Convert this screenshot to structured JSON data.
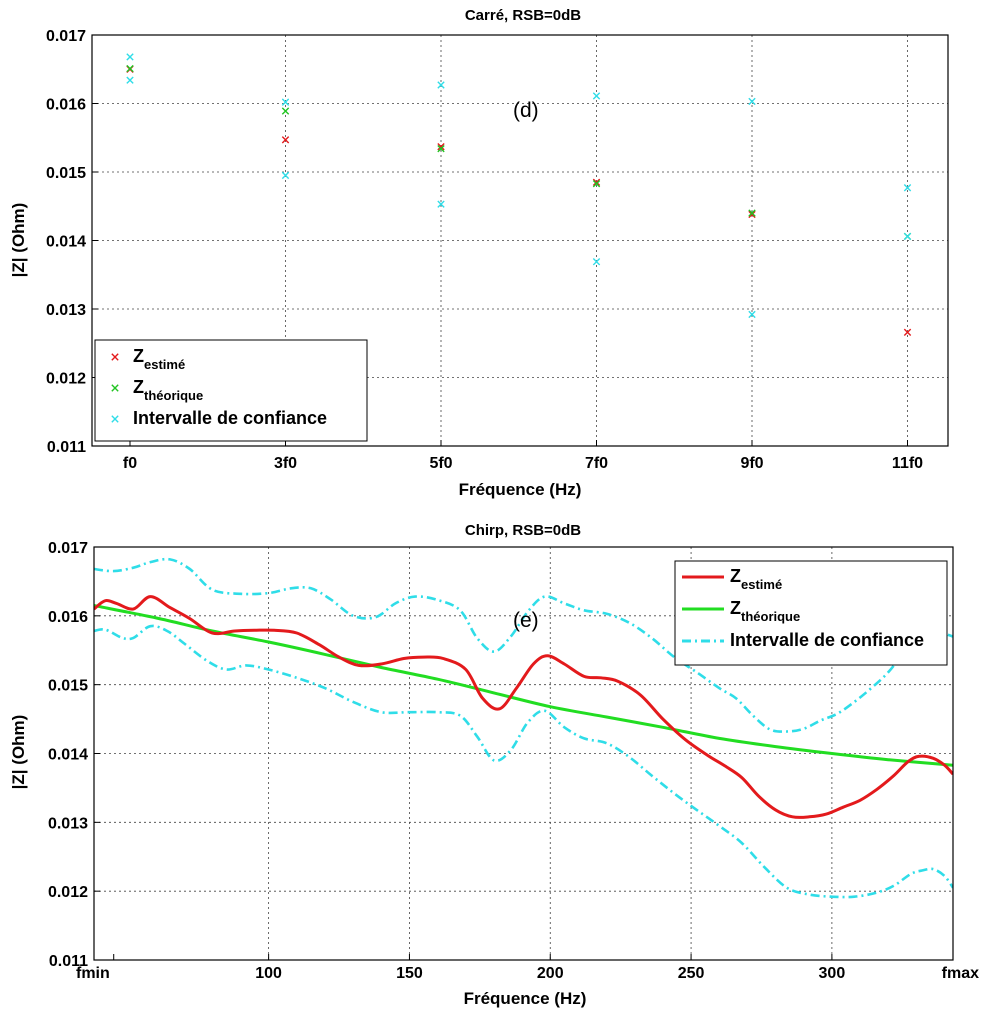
{
  "chart_data": [
    {
      "type": "scatter",
      "title": "Carré, RSB=0dB",
      "xlabel": "Fréquence (Hz)",
      "ylabel": "|Z| (Ohm)",
      "annotation": "(d)",
      "categories": [
        "f0",
        "3f0",
        "5f0",
        "7f0",
        "9f0",
        "11f0"
      ],
      "ylim": [
        0.011,
        0.017
      ],
      "yticks": [
        "0.011",
        "0.012",
        "0.013",
        "0.014",
        "0.015",
        "0.016",
        "0.017"
      ],
      "grid": true,
      "legend_position": "bottom-left",
      "series": [
        {
          "name_main": "Z",
          "name_sub": "estimé",
          "color": "#e31a1c",
          "marker": "x",
          "values": [
            0.0165,
            0.01547,
            0.01537,
            0.01485,
            0.01438,
            0.01266
          ]
        },
        {
          "name_main": "Z",
          "name_sub": "théorique",
          "color": "#22c422",
          "marker": "x",
          "values": [
            0.01651,
            0.01589,
            0.01534,
            0.01483,
            0.0144,
            0.01406
          ]
        },
        {
          "name_main": "Intervalle de confiance",
          "name_sub": "",
          "color": "#2fdde8",
          "marker": "x",
          "upper": [
            0.01668,
            0.01602,
            0.01627,
            0.01611,
            0.01603,
            0.01477
          ],
          "lower": [
            0.01634,
            0.01495,
            0.01453,
            0.01369,
            0.01292,
            0.01406
          ]
        }
      ]
    },
    {
      "type": "line",
      "title": "Chirp, RSB=0dB",
      "xlabel": "Fréquence (Hz)",
      "ylabel": "|Z| (Ohm)",
      "annotation": "(e)",
      "xlim": [
        38,
        343
      ],
      "xticks": [
        {
          "value": 45,
          "label": "fmin"
        },
        {
          "value": 100,
          "label": "100"
        },
        {
          "value": 150,
          "label": "150"
        },
        {
          "value": 200,
          "label": "200"
        },
        {
          "value": 250,
          "label": "250"
        },
        {
          "value": 300,
          "label": "300"
        },
        {
          "value": 343,
          "label": "fmax"
        }
      ],
      "ylim": [
        0.011,
        0.017
      ],
      "yticks": [
        "0.011",
        "0.012",
        "0.013",
        "0.014",
        "0.015",
        "0.016",
        "0.017"
      ],
      "grid": true,
      "legend_position": "top-right",
      "series": [
        {
          "name_main": "Z",
          "name_sub": "estimé",
          "color": "#e31a1c",
          "dash": "solid",
          "x": [
            38,
            42,
            46,
            52,
            58,
            65,
            72,
            80,
            88,
            95,
            102,
            110,
            118,
            125,
            132,
            140,
            148,
            155,
            162,
            170,
            176,
            182,
            188,
            194,
            199,
            205,
            212,
            218,
            224,
            232,
            240,
            248,
            256,
            262,
            268,
            274,
            280,
            286,
            292,
            298,
            304,
            310,
            316,
            322,
            327,
            331,
            336,
            340,
            343
          ],
          "y": [
            0.0161,
            0.01622,
            0.01618,
            0.0161,
            0.01628,
            0.01612,
            0.01596,
            0.01575,
            0.01578,
            0.01579,
            0.01579,
            0.01575,
            0.01558,
            0.0154,
            0.01528,
            0.0153,
            0.01538,
            0.0154,
            0.01538,
            0.01522,
            0.0148,
            0.01465,
            0.01495,
            0.0153,
            0.01542,
            0.0153,
            0.01512,
            0.0151,
            0.01505,
            0.01485,
            0.0145,
            0.0142,
            0.01397,
            0.01382,
            0.01365,
            0.01338,
            0.01318,
            0.01308,
            0.01308,
            0.01312,
            0.01322,
            0.01332,
            0.01348,
            0.01368,
            0.01388,
            0.01396,
            0.01393,
            0.01383,
            0.0137
          ]
        },
        {
          "name_main": "Z",
          "name_sub": "théorique",
          "color": "#22dd22",
          "dash": "solid",
          "x": [
            38,
            60,
            80,
            100,
            120,
            140,
            160,
            180,
            200,
            220,
            240,
            260,
            280,
            300,
            320,
            343
          ],
          "y": [
            0.01615,
            0.01597,
            0.01578,
            0.01562,
            0.01544,
            0.01525,
            0.01508,
            0.01488,
            0.01468,
            0.01453,
            0.01438,
            0.01422,
            0.0141,
            0.014,
            0.01391,
            0.01383
          ]
        },
        {
          "name_main": "Intervalle de confiance",
          "name_sub": "",
          "color": "#2fdde8",
          "dash": "dashdot",
          "upper": {
            "x": [
              38,
              45,
              52,
              58,
              65,
              72,
              80,
              90,
              100,
              108,
              115,
              122,
              130,
              138,
              145,
              152,
              160,
              168,
              174,
              180,
              186,
              192,
              198,
              205,
              212,
              220,
              228,
              236,
              244,
              252,
              260,
              266,
              272,
              278,
              284,
              290,
              296,
              302,
              308,
              314,
              320,
              326,
              332,
              338,
              343
            ],
            "y": [
              0.01668,
              0.01665,
              0.0167,
              0.01678,
              0.01682,
              0.01668,
              0.01638,
              0.01632,
              0.01633,
              0.0164,
              0.0164,
              0.01624,
              0.016,
              0.01598,
              0.01618,
              0.01628,
              0.01623,
              0.01608,
              0.01568,
              0.01548,
              0.0157,
              0.01606,
              0.01628,
              0.01618,
              0.01608,
              0.01603,
              0.0159,
              0.01568,
              0.0154,
              0.01518,
              0.01495,
              0.0148,
              0.01455,
              0.01435,
              0.01432,
              0.01436,
              0.01448,
              0.01458,
              0.01475,
              0.01495,
              0.01518,
              0.01548,
              0.01568,
              0.01575,
              0.0157
            ]
          },
          "lower": {
            "x": [
              38,
              42,
              48,
              52,
              58,
              64,
              70,
              78,
              85,
              92,
              100,
              110,
              120,
              130,
              140,
              150,
              160,
              168,
              174,
              180,
              186,
              192,
              198,
              205,
              212,
              220,
              228,
              236,
              244,
              252,
              260,
              268,
              276,
              284,
              292,
              300,
              308,
              316,
              322,
              328,
              332,
              336,
              340,
              343
            ],
            "y": [
              0.01578,
              0.0158,
              0.01568,
              0.01568,
              0.01585,
              0.01578,
              0.0156,
              0.01535,
              0.01522,
              0.01528,
              0.01522,
              0.0151,
              0.01495,
              0.01475,
              0.0146,
              0.0146,
              0.0146,
              0.01455,
              0.01425,
              0.0139,
              0.01405,
              0.01445,
              0.01462,
              0.01438,
              0.01422,
              0.01415,
              0.01395,
              0.01368,
              0.01342,
              0.01318,
              0.01295,
              0.0127,
              0.01235,
              0.01205,
              0.01195,
              0.01192,
              0.01192,
              0.01198,
              0.01208,
              0.01225,
              0.0123,
              0.01232,
              0.01222,
              0.01205
            ]
          }
        }
      ]
    }
  ]
}
